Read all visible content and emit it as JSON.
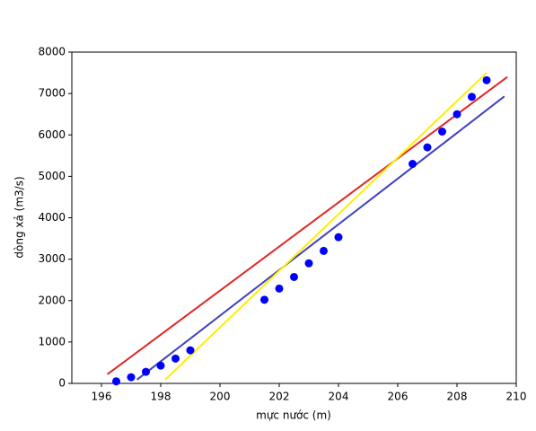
{
  "chart_data": {
    "type": "scatter",
    "x_label": "mực nước (m)",
    "y_label": "dòng xả (m3/s)",
    "xlim": [
      195,
      210
    ],
    "ylim": [
      0,
      8000
    ],
    "xticks": [
      196,
      198,
      200,
      202,
      204,
      206,
      208,
      210
    ],
    "yticks": [
      0,
      1000,
      2000,
      3000,
      4000,
      5000,
      6000,
      7000,
      8000
    ],
    "series": [
      {
        "type": "line",
        "color": "#e02626",
        "x": [
          196.2,
          209.7
        ],
        "values": [
          220,
          7400
        ]
      },
      {
        "type": "line",
        "color": "#4040c0",
        "x": [
          197.2,
          209.6
        ],
        "values": [
          90,
          6930
        ]
      },
      {
        "type": "line",
        "color": "#ffee00",
        "x": [
          198.15,
          209.0
        ],
        "values": [
          90,
          7500
        ]
      },
      {
        "type": "scatter",
        "color": "#0000ff",
        "x": [
          196.5,
          197,
          197.5,
          198,
          198.5,
          199,
          201.5,
          202,
          202.5,
          203,
          203.5,
          204,
          206.5,
          207,
          207.5,
          208,
          208.5,
          209
        ],
        "values": [
          50,
          150,
          280,
          430,
          600,
          800,
          2020,
          2290,
          2570,
          2900,
          3200,
          3530,
          5300,
          5700,
          6080,
          6500,
          6920,
          7320
        ]
      }
    ]
  }
}
